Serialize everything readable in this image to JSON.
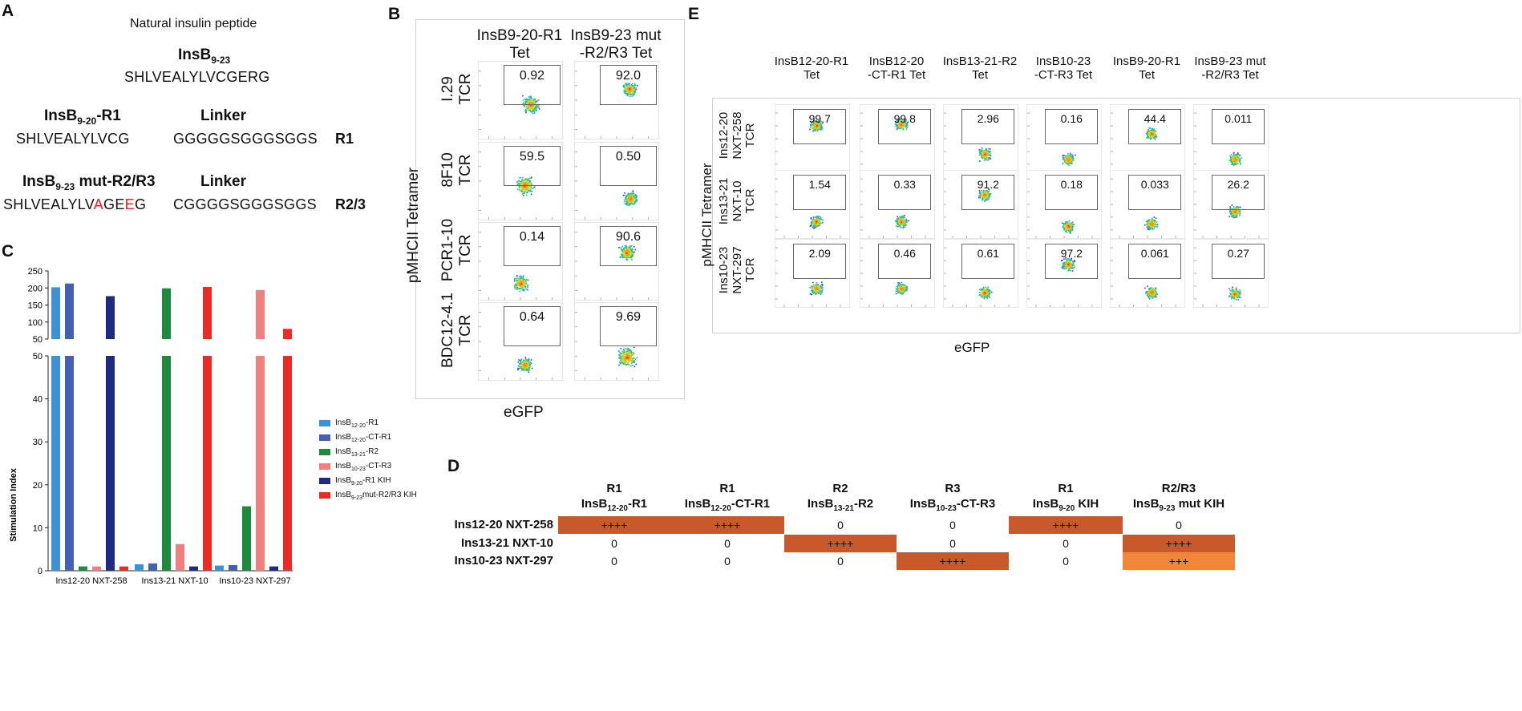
{
  "panels": {
    "A": "A",
    "B": "B",
    "C": "C",
    "D": "D",
    "E": "E"
  },
  "panel_a": {
    "heading": "Natural insulin peptide",
    "natural": {
      "name": "InsB",
      "sub": "9-23",
      "seq": "SHLVEALYLVCGERG"
    },
    "r1": {
      "name": "InsB",
      "sub": "9-20",
      "suffix": "-R1",
      "linker_label": "Linker",
      "seq": "SHLVEALYLVCG",
      "linker": "GGGGGSGGGSGGS",
      "tag": "R1"
    },
    "r23": {
      "name": "InsB",
      "sub": "9-23",
      "suffix": " mut-R2/R3",
      "linker_label": "Linker",
      "seq_a": "SHLVEALYLV",
      "mut1": "A",
      "seq_b": "GE",
      "mut2": "E",
      "seq_c": "G",
      "linker": "CGGGGSGGGSGGS",
      "tag": "R2/3"
    }
  },
  "panel_b": {
    "col_headers": [
      "InsB9-20-R1\nTet",
      "InsB9-23 mut\n-R2/R3 Tet"
    ],
    "row_labels": [
      "I.29\nTCR",
      "8F10\nTCR",
      "PCR1-10\nTCR",
      "BDC12-4.1\nTCR"
    ],
    "y_axis": "pMHCII Tetramer",
    "x_axis": "eGFP",
    "values": [
      [
        "0.92",
        "92.0"
      ],
      [
        "59.5",
        "0.50"
      ],
      [
        "0.14",
        "90.6"
      ],
      [
        "0.64",
        "9.69"
      ]
    ]
  },
  "panel_e": {
    "col_headers": [
      "InsB12-20-R1\nTet",
      "InsB12-20\n-CT-R1 Tet",
      "InsB13-21-R2\nTet",
      "InsB10-23\n-CT-R3 Tet",
      "InsB9-20-R1\nTet",
      "InsB9-23 mut\n-R2/R3 Tet"
    ],
    "row_labels": [
      "Ins12-20\nNXT-258\nTCR",
      "Ins13-21\nNXT-10\nTCR",
      "Ins10-23\nNXT-297\nTCR"
    ],
    "y_axis": "pMHCII Tetramer",
    "x_axis": "eGFP",
    "values": [
      [
        "99.7",
        "99.8",
        "2.96",
        "0.16",
        "44.4",
        "0.011"
      ],
      [
        "1.54",
        "0.33",
        "91.2",
        "0.18",
        "0.033",
        "26.2"
      ],
      [
        "2.09",
        "0.46",
        "0.61",
        "97.2",
        "0.061",
        "0.27"
      ]
    ]
  },
  "chart_data": {
    "type": "bar",
    "title": "",
    "xlabel": "",
    "ylabel": "Stimulation Index",
    "categories": [
      "Ins12-20 NXT-258",
      "Ins13-21 NXT-10",
      "Ins10-23 NXT-297"
    ],
    "series": [
      {
        "name": "InsB12-20-R1",
        "sub": "12-20",
        "pre": "InsB",
        "post": "-R1",
        "color": "#3d92d6",
        "values": [
          202,
          1.5,
          1.2
        ]
      },
      {
        "name": "InsB12-20-CT-R1",
        "sub": "12-20",
        "pre": "InsB",
        "post": "-CT-R1",
        "color": "#4360b5",
        "values": [
          213,
          1.7,
          1.3
        ]
      },
      {
        "name": "InsB13-21-R2",
        "sub": "13-21",
        "pre": "InsB",
        "post": "-R2",
        "color": "#1d8a3e",
        "values": [
          1.0,
          199,
          15.0
        ]
      },
      {
        "name": "InsB10-23-CT-R3",
        "sub": "10-23",
        "pre": "InsB",
        "post": "-CT-R3",
        "color": "#f08080",
        "values": [
          1.0,
          6.2,
          194
        ]
      },
      {
        "name": "InsB9-20-R1 KIH",
        "sub": "9-20",
        "pre": "InsB",
        "post": "-R1 KIH",
        "color": "#1f2b80",
        "values": [
          176,
          1.0,
          1.0
        ]
      },
      {
        "name": "InsB9-23mut-R2/R3 KIH",
        "sub": "9-23",
        "pre": "InsB",
        "post": "mut-R2/R3 KIH",
        "color": "#ee2a24",
        "values": [
          1.0,
          203,
          80
        ]
      }
    ],
    "y_lower_ticks": [
      "0",
      "10",
      "20",
      "30",
      "40",
      "50"
    ],
    "y_upper_ticks": [
      "50",
      "100",
      "150",
      "200",
      "250"
    ],
    "ylim_lower": [
      0,
      50
    ],
    "ylim_upper": [
      50,
      250
    ]
  },
  "panel_d": {
    "headers": [
      {
        "r": "R1",
        "pre": "InsB",
        "sub": "12-20",
        "post": "-R1"
      },
      {
        "r": "R1",
        "pre": "InsB",
        "sub": "12-20",
        "post": "-CT-R1"
      },
      {
        "r": "R2",
        "pre": "InsB",
        "sub": "13-21",
        "post": "-R2"
      },
      {
        "r": "R3",
        "pre": "InsB",
        "sub": "10-23",
        "post": "-CT-R3"
      },
      {
        "r": "R1",
        "pre": "InsB",
        "sub": "9-20",
        "post": " KIH"
      },
      {
        "r": "R2/R3",
        "pre": "InsB",
        "sub": "9-23",
        "post": " mut KIH"
      }
    ],
    "rows": [
      {
        "label": "Ins12-20 NXT-258",
        "cells": [
          "++++",
          "++++",
          "0",
          "0",
          "++++",
          "0"
        ]
      },
      {
        "label": "Ins13-21 NXT-10",
        "cells": [
          "0",
          "0",
          "++++",
          "0",
          "0",
          "++++"
        ]
      },
      {
        "label": "Ins10-23 NXT-297",
        "cells": [
          "0",
          "0",
          "0",
          "++++",
          "0",
          "+++"
        ]
      }
    ],
    "colors": {
      "strong": "#c9592a",
      "medium": "#f0873a"
    }
  }
}
